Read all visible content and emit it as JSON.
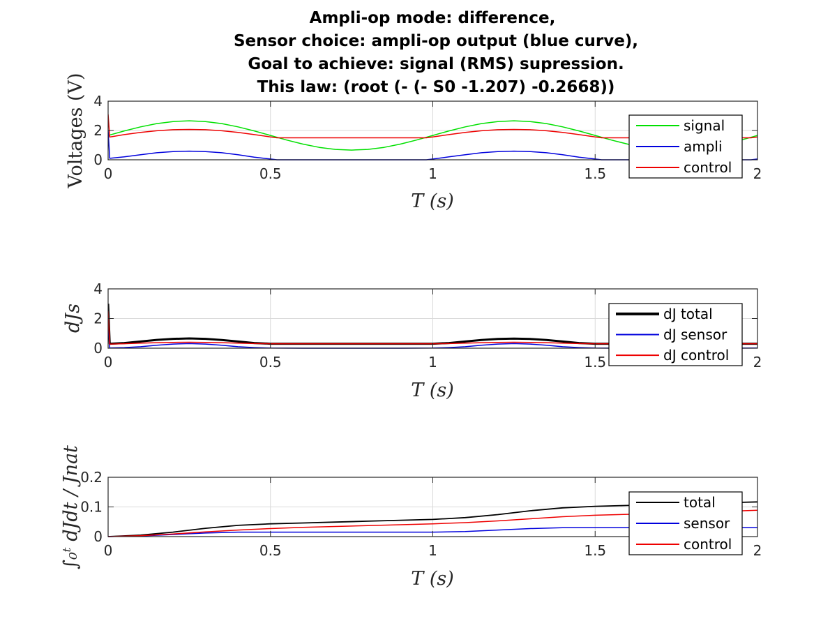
{
  "title_lines": [
    "Ampli-op mode: difference,",
    "Sensor choice: ampli-op output (blue curve),",
    "Goal to achieve: signal (RMS) supression.",
    "This law: (root (- (- S0 -1.207) -0.2668))"
  ],
  "colors": {
    "green": "#00e000",
    "blue": "#0000dd",
    "red": "#ee0000",
    "black": "#000000",
    "grid": "#d9d9d9",
    "axis": "#262626"
  },
  "chart_data": [
    {
      "type": "line",
      "xlabel": "T (s)",
      "ylabel": "Voltages (V)",
      "xlim": [
        0,
        2
      ],
      "ylim": [
        0,
        4
      ],
      "xticks": [
        "0",
        "0.5",
        "1",
        "1.5",
        "2"
      ],
      "yticks": [
        "0",
        "2",
        "4"
      ],
      "grid": true,
      "legend_position": "top-right",
      "series": [
        {
          "name": "signal",
          "color": "#00e000",
          "width": 1.5,
          "x": [
            0,
            0.05,
            0.1,
            0.15,
            0.2,
            0.25,
            0.3,
            0.35,
            0.4,
            0.45,
            0.5,
            0.55,
            0.6,
            0.65,
            0.7,
            0.75,
            0.8,
            0.85,
            0.9,
            0.95,
            1.0,
            1.05,
            1.1,
            1.15,
            1.2,
            1.25,
            1.3,
            1.35,
            1.4,
            1.45,
            1.5,
            1.55,
            1.6,
            1.65,
            1.7,
            1.75,
            1.8,
            1.85,
            1.9,
            1.95,
            2.0
          ],
          "y": [
            1.66,
            1.97,
            2.25,
            2.47,
            2.61,
            2.66,
            2.61,
            2.47,
            2.25,
            1.97,
            1.66,
            1.35,
            1.07,
            0.85,
            0.71,
            0.66,
            0.71,
            0.85,
            1.07,
            1.35,
            1.66,
            1.97,
            2.25,
            2.47,
            2.61,
            2.66,
            2.61,
            2.47,
            2.25,
            1.97,
            1.66,
            1.35,
            1.07,
            0.85,
            0.71,
            0.66,
            0.71,
            0.85,
            1.07,
            1.35,
            1.66
          ]
        },
        {
          "name": "ampli",
          "color": "#0000dd",
          "width": 1.5,
          "x": [
            0,
            0.005,
            0.05,
            0.1,
            0.15,
            0.2,
            0.25,
            0.3,
            0.35,
            0.4,
            0.45,
            0.5,
            0.52,
            0.6,
            0.7,
            0.8,
            0.9,
            0.98,
            1.0,
            1.05,
            1.1,
            1.15,
            1.2,
            1.25,
            1.3,
            1.35,
            1.4,
            1.45,
            1.5,
            1.52,
            1.6,
            1.7,
            1.8,
            1.9,
            1.98,
            2.0
          ],
          "y": [
            2.0,
            0.1,
            0.2,
            0.35,
            0.48,
            0.56,
            0.59,
            0.56,
            0.48,
            0.35,
            0.18,
            0.05,
            0.0,
            0.0,
            0.0,
            0.0,
            0.0,
            0.0,
            0.05,
            0.2,
            0.35,
            0.48,
            0.56,
            0.59,
            0.56,
            0.48,
            0.35,
            0.18,
            0.05,
            0.0,
            0.0,
            0.0,
            0.0,
            0.0,
            0.0,
            0.05
          ]
        },
        {
          "name": "control",
          "color": "#ee0000",
          "width": 1.5,
          "x": [
            0,
            0.005,
            0.05,
            0.1,
            0.15,
            0.2,
            0.25,
            0.3,
            0.35,
            0.4,
            0.45,
            0.5,
            0.52,
            0.6,
            0.7,
            0.8,
            0.9,
            0.98,
            1.0,
            1.05,
            1.1,
            1.15,
            1.2,
            1.25,
            1.3,
            1.35,
            1.4,
            1.45,
            1.5,
            1.52,
            1.6,
            1.7,
            1.8,
            1.9,
            1.98,
            2.0
          ],
          "y": [
            3.1,
            1.55,
            1.72,
            1.87,
            1.98,
            2.05,
            2.07,
            2.05,
            1.98,
            1.87,
            1.72,
            1.56,
            1.5,
            1.5,
            1.5,
            1.5,
            1.5,
            1.5,
            1.56,
            1.72,
            1.87,
            1.98,
            2.05,
            2.07,
            2.05,
            1.98,
            1.87,
            1.72,
            1.56,
            1.5,
            1.5,
            1.5,
            1.5,
            1.5,
            1.5,
            1.56
          ]
        }
      ]
    },
    {
      "type": "line",
      "xlabel": "T (s)",
      "ylabel": "dJs",
      "xlim": [
        0,
        2
      ],
      "ylim": [
        0,
        4
      ],
      "xticks": [
        "0",
        "0.5",
        "1",
        "1.5",
        "2"
      ],
      "yticks": [
        "0",
        "2",
        "4"
      ],
      "grid": true,
      "legend_position": "top-right",
      "series": [
        {
          "name": "dJ total",
          "color": "#000000",
          "width": 3,
          "x": [
            0,
            0.005,
            0.05,
            0.1,
            0.15,
            0.2,
            0.25,
            0.3,
            0.35,
            0.4,
            0.45,
            0.5,
            0.6,
            0.7,
            0.8,
            0.9,
            1.0,
            1.05,
            1.1,
            1.15,
            1.2,
            1.25,
            1.3,
            1.35,
            1.4,
            1.45,
            1.5,
            1.6,
            1.7,
            1.8,
            1.9,
            2.0
          ],
          "y": [
            3.0,
            0.3,
            0.35,
            0.45,
            0.56,
            0.63,
            0.66,
            0.63,
            0.55,
            0.45,
            0.35,
            0.3,
            0.3,
            0.3,
            0.3,
            0.3,
            0.3,
            0.35,
            0.45,
            0.55,
            0.62,
            0.65,
            0.62,
            0.55,
            0.45,
            0.35,
            0.3,
            0.3,
            0.3,
            0.3,
            0.3,
            0.3
          ]
        },
        {
          "name": "dJ sensor",
          "color": "#0000dd",
          "width": 1.5,
          "x": [
            0,
            0.005,
            0.05,
            0.1,
            0.15,
            0.2,
            0.25,
            0.3,
            0.35,
            0.4,
            0.45,
            0.5,
            0.6,
            0.7,
            0.8,
            0.9,
            1.0,
            1.05,
            1.1,
            1.15,
            1.2,
            1.25,
            1.3,
            1.35,
            1.4,
            1.45,
            1.5,
            1.6,
            1.7,
            1.8,
            1.9,
            2.0
          ],
          "y": [
            2.0,
            0.02,
            0.04,
            0.1,
            0.2,
            0.28,
            0.31,
            0.28,
            0.2,
            0.1,
            0.04,
            0.01,
            0.0,
            0.0,
            0.0,
            0.0,
            0.01,
            0.04,
            0.1,
            0.2,
            0.28,
            0.31,
            0.28,
            0.2,
            0.1,
            0.04,
            0.01,
            0.0,
            0.0,
            0.0,
            0.0,
            0.01
          ]
        },
        {
          "name": "dJ control",
          "color": "#ee0000",
          "width": 1.5,
          "x": [
            0,
            0.005,
            0.05,
            0.1,
            0.15,
            0.2,
            0.25,
            0.3,
            0.35,
            0.4,
            0.45,
            0.5,
            0.6,
            0.7,
            0.8,
            0.9,
            1.0,
            1.05,
            1.1,
            1.15,
            1.2,
            1.25,
            1.3,
            1.35,
            1.4,
            1.45,
            1.5,
            1.6,
            1.7,
            1.8,
            1.9,
            2.0
          ],
          "y": [
            2.5,
            0.28,
            0.3,
            0.34,
            0.37,
            0.39,
            0.4,
            0.39,
            0.37,
            0.34,
            0.31,
            0.3,
            0.3,
            0.3,
            0.3,
            0.3,
            0.3,
            0.31,
            0.34,
            0.37,
            0.39,
            0.4,
            0.39,
            0.37,
            0.34,
            0.31,
            0.3,
            0.3,
            0.3,
            0.3,
            0.3,
            0.3
          ]
        }
      ]
    },
    {
      "type": "line",
      "xlabel": "T (s)",
      "ylabel": "∫₀ᵗ dJdt / Jnat",
      "xlim": [
        0,
        2
      ],
      "ylim": [
        0,
        0.2
      ],
      "xticks": [
        "0",
        "0.5",
        "1",
        "1.5",
        "2"
      ],
      "yticks": [
        "0",
        "0.1",
        "0.2"
      ],
      "grid": true,
      "legend_position": "top-right",
      "series": [
        {
          "name": "total",
          "color": "#000000",
          "width": 1.8,
          "x": [
            0,
            0.1,
            0.2,
            0.3,
            0.4,
            0.5,
            0.6,
            0.7,
            0.8,
            0.9,
            1.0,
            1.1,
            1.2,
            1.3,
            1.4,
            1.5,
            1.6,
            1.7,
            1.8,
            1.9,
            2.0
          ],
          "y": [
            0,
            0.005,
            0.015,
            0.028,
            0.038,
            0.043,
            0.046,
            0.049,
            0.052,
            0.055,
            0.058,
            0.064,
            0.074,
            0.087,
            0.097,
            0.102,
            0.105,
            0.108,
            0.111,
            0.114,
            0.117
          ]
        },
        {
          "name": "sensor",
          "color": "#0000dd",
          "width": 1.5,
          "x": [
            0,
            0.1,
            0.2,
            0.3,
            0.4,
            0.5,
            0.6,
            0.7,
            0.8,
            0.9,
            1.0,
            1.1,
            1.2,
            1.3,
            1.4,
            1.5,
            1.6,
            1.7,
            1.8,
            1.9,
            2.0
          ],
          "y": [
            0,
            0.002,
            0.007,
            0.012,
            0.015,
            0.015,
            0.015,
            0.015,
            0.015,
            0.015,
            0.015,
            0.017,
            0.022,
            0.027,
            0.03,
            0.03,
            0.03,
            0.03,
            0.03,
            0.03,
            0.03
          ]
        },
        {
          "name": "control",
          "color": "#ee0000",
          "width": 1.5,
          "x": [
            0,
            0.1,
            0.2,
            0.3,
            0.4,
            0.5,
            0.6,
            0.7,
            0.8,
            0.9,
            1.0,
            1.1,
            1.2,
            1.3,
            1.4,
            1.5,
            1.6,
            1.7,
            1.8,
            1.9,
            2.0
          ],
          "y": [
            0,
            0.003,
            0.009,
            0.016,
            0.022,
            0.027,
            0.031,
            0.034,
            0.037,
            0.04,
            0.043,
            0.047,
            0.053,
            0.06,
            0.067,
            0.072,
            0.075,
            0.078,
            0.082,
            0.085,
            0.089
          ]
        }
      ]
    }
  ]
}
